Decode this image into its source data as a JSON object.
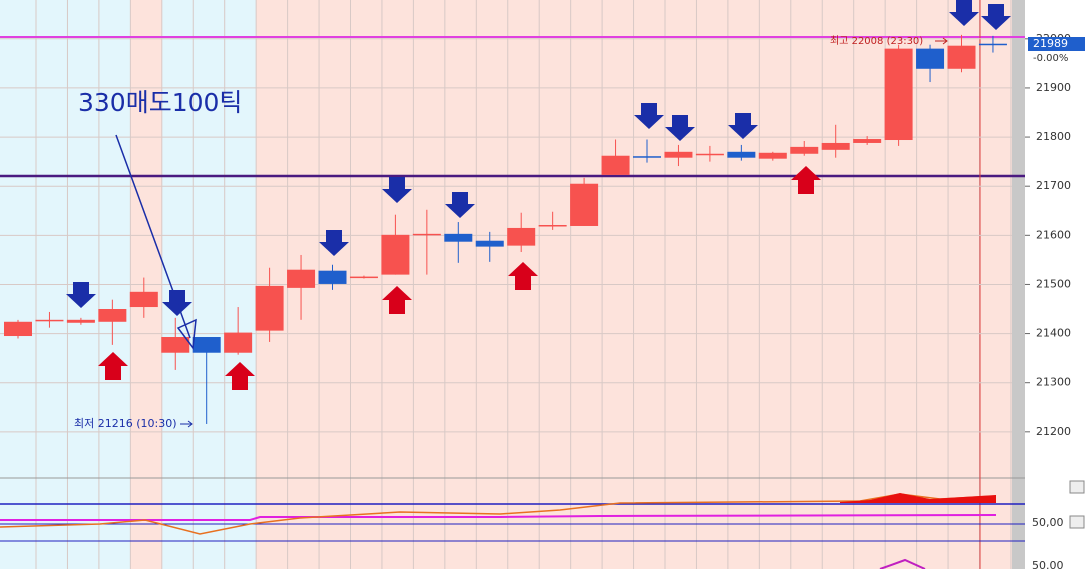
{
  "chart_data": {
    "type": "candlestick",
    "candles": [
      {
        "open": 21395,
        "high": 21428,
        "low": 21390,
        "close": 21424
      },
      {
        "open": 21428,
        "high": 21444,
        "low": 21412,
        "close": 21428
      },
      {
        "open": 21422,
        "high": 21432,
        "low": 21418,
        "close": 21428
      },
      {
        "open": 21424,
        "high": 21469,
        "low": 21377,
        "close": 21450
      },
      {
        "open": 21454,
        "high": 21514,
        "low": 21432,
        "close": 21485
      },
      {
        "open": 21361,
        "high": 21432,
        "low": 21326,
        "close": 21393
      },
      {
        "open": 21393,
        "high": 21393,
        "low": 21216,
        "close": 21361
      },
      {
        "open": 21361,
        "high": 21454,
        "low": 21357,
        "close": 21402
      },
      {
        "open": 21406,
        "high": 21534,
        "low": 21383,
        "close": 21497
      },
      {
        "open": 21493,
        "high": 21560,
        "low": 21428,
        "close": 21530
      },
      {
        "open": 21528,
        "high": 21540,
        "low": 21489,
        "close": 21501
      },
      {
        "open": 21514,
        "high": 21518,
        "low": 21512,
        "close": 21516
      },
      {
        "open": 21520,
        "high": 21642,
        "low": 21520,
        "close": 21601
      },
      {
        "open": 21601,
        "high": 21652,
        "low": 21520,
        "close": 21603
      },
      {
        "open": 21603,
        "high": 21627,
        "low": 21544,
        "close": 21587
      },
      {
        "open": 21589,
        "high": 21607,
        "low": 21546,
        "close": 21577
      },
      {
        "open": 21579,
        "high": 21646,
        "low": 21566,
        "close": 21615
      },
      {
        "open": 21619,
        "high": 21648,
        "low": 21611,
        "close": 21621
      },
      {
        "open": 21619,
        "high": 21717,
        "low": 21619,
        "close": 21705
      },
      {
        "open": 21723,
        "high": 21795,
        "low": 21723,
        "close": 21762
      },
      {
        "open": 21761,
        "high": 21795,
        "low": 21748,
        "close": 21760
      },
      {
        "open": 21758,
        "high": 21784,
        "low": 21741,
        "close": 21770
      },
      {
        "open": 21766,
        "high": 21782,
        "low": 21750,
        "close": 21766
      },
      {
        "open": 21770,
        "high": 21784,
        "low": 21752,
        "close": 21758
      },
      {
        "open": 21756,
        "high": 21770,
        "low": 21752,
        "close": 21768
      },
      {
        "open": 21766,
        "high": 21792,
        "low": 21762,
        "close": 21780
      },
      {
        "open": 21774,
        "high": 21825,
        "low": 21758,
        "close": 21788
      },
      {
        "open": 21788,
        "high": 21802,
        "low": 21784,
        "close": 21796
      },
      {
        "open": 21794,
        "high": 21988,
        "low": 21782,
        "close": 21980
      },
      {
        "open": 21980,
        "high": 21988,
        "low": 21912,
        "close": 21939
      },
      {
        "open": 21939,
        "high": 22008,
        "low": 21932,
        "close": 21986
      },
      {
        "open": 21990,
        "high": 22006,
        "low": 21972,
        "close": 21989
      }
    ],
    "up_color": "#f7524f",
    "down_color": "#1f5fcc",
    "ylim": [
      21106,
      22079
    ],
    "yticks": [
      21200,
      21300,
      21400,
      21500,
      21600,
      21700,
      21800,
      21900,
      22000
    ],
    "grid": true,
    "annotations": {
      "signal": "330매도100틱",
      "low": "최저 21216 (10:30)",
      "high": "최고 22008 (23:30)",
      "last_price": "21989",
      "change": "-0.00%",
      "indicator_level": "50,00",
      "indicator_level_2": "50.00"
    }
  }
}
